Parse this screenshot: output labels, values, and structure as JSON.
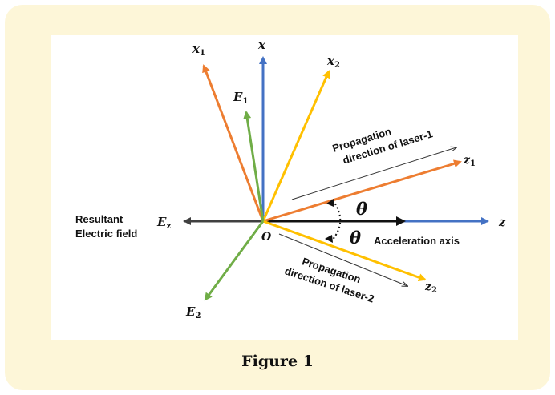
{
  "figure": {
    "caption": "Figure 1",
    "colors": {
      "x_axis": "#4472c4",
      "laser1": "#ed7d31",
      "laser2": "#ffc000",
      "field": "#70ad47",
      "resultant": "#404040",
      "black": "#111111"
    },
    "labels": {
      "x": "x",
      "x1": "x",
      "x1_sub": "1",
      "x2": "x",
      "x2_sub": "2",
      "e1": "E",
      "e1_sub": "1",
      "e2": "E",
      "e2_sub": "2",
      "z": "z",
      "z1": "z",
      "z1_sub": "1",
      "z2": "z",
      "z2_sub": "2",
      "ez": "E",
      "ez_sub": "z",
      "origin": "O",
      "theta_top": "θ",
      "theta_bottom": "θ",
      "resultant_line1": "Resultant",
      "resultant_line2": "Electric field",
      "acceleration_axis": "Acceleration axis",
      "prop1_line1": "Propagation",
      "prop1_line2": "direction of laser-1",
      "prop2_line1": "Propagation",
      "prop2_line2": "direction of laser-2"
    }
  }
}
